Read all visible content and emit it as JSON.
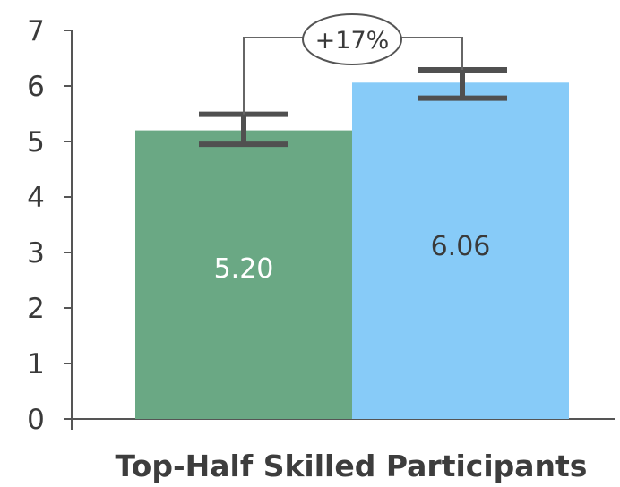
{
  "chart_data": {
    "type": "bar",
    "title": "",
    "xlabel": "Top-Half Skilled Participants",
    "ylabel": "",
    "ylim": [
      0,
      7
    ],
    "yticks": [
      0,
      1,
      2,
      3,
      4,
      5,
      6,
      7
    ],
    "grid": false,
    "bars": [
      {
        "value": 5.2,
        "label": "5.20",
        "error_low": 4.95,
        "error_high": 5.49,
        "color": "#6aa884",
        "label_color": "#ffffff"
      },
      {
        "value": 6.06,
        "label": "6.06",
        "error_low": 5.78,
        "error_high": 6.29,
        "color": "#87cbf8",
        "label_color": "#3a3a3a"
      }
    ],
    "annotation": {
      "text": "+17%"
    }
  }
}
